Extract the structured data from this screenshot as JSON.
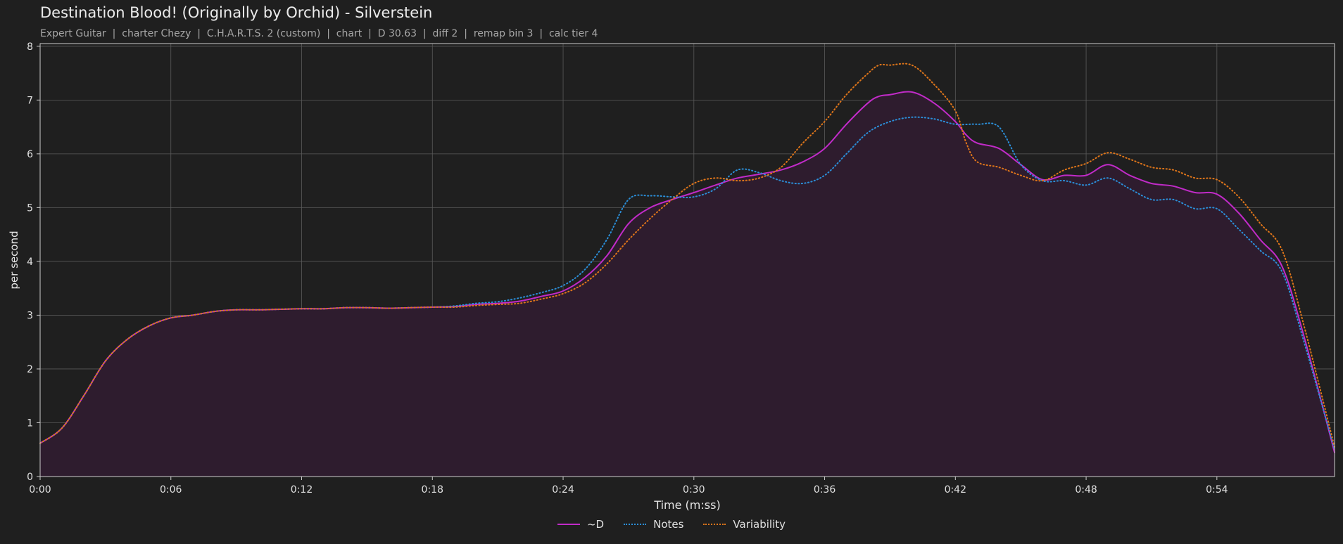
{
  "chart_data": {
    "type": "line",
    "title": "Destination Blood! (Originally by Orchid) - Silverstein",
    "subtitle": "Expert Guitar  |  charter Chezy  |  C.H.A.R.T.S. 2 (custom)  |  chart  |  D 30.63  |  diff 2  |  remap bin 3  |  calc tier 4",
    "xlabel": "Time (m:ss)",
    "ylabel": "per second",
    "xlim": [
      0,
      59.4
    ],
    "ylim": [
      0,
      8.05
    ],
    "xticks": [
      {
        "value": 0,
        "label": "0:00"
      },
      {
        "value": 6,
        "label": "0:06"
      },
      {
        "value": 12,
        "label": "0:12"
      },
      {
        "value": 18,
        "label": "0:18"
      },
      {
        "value": 24,
        "label": "0:24"
      },
      {
        "value": 30,
        "label": "0:30"
      },
      {
        "value": 36,
        "label": "0:36"
      },
      {
        "value": 42,
        "label": "0:42"
      },
      {
        "value": 48,
        "label": "0:48"
      },
      {
        "value": 54,
        "label": "0:54"
      }
    ],
    "yticks": [
      {
        "value": 0,
        "label": "0"
      },
      {
        "value": 1,
        "label": "1"
      },
      {
        "value": 2,
        "label": "2"
      },
      {
        "value": 3,
        "label": "3"
      },
      {
        "value": 4,
        "label": "4"
      },
      {
        "value": 5,
        "label": "5"
      },
      {
        "value": 6,
        "label": "6"
      },
      {
        "value": 7,
        "label": "7"
      },
      {
        "value": 8,
        "label": "8"
      }
    ],
    "grid": true,
    "legend_position": "bottom-center",
    "colors": {
      "background": "#1f1f1f",
      "grid": "#5a5a5a",
      "axis": "#cccccc",
      "fill": "#2e1c2e"
    },
    "series": [
      {
        "name": "~D",
        "color": "#c12bc8",
        "style": "solid",
        "filled": true,
        "points": [
          [
            0,
            0.62
          ],
          [
            1,
            0.9
          ],
          [
            2,
            1.5
          ],
          [
            3,
            2.15
          ],
          [
            4,
            2.55
          ],
          [
            5,
            2.8
          ],
          [
            6,
            2.95
          ],
          [
            7,
            3.0
          ],
          [
            8,
            3.07
          ],
          [
            9,
            3.1
          ],
          [
            10,
            3.1
          ],
          [
            11,
            3.11
          ],
          [
            12,
            3.12
          ],
          [
            13,
            3.12
          ],
          [
            14,
            3.14
          ],
          [
            15,
            3.14
          ],
          [
            16,
            3.13
          ],
          [
            17,
            3.14
          ],
          [
            18,
            3.15
          ],
          [
            19,
            3.16
          ],
          [
            20,
            3.2
          ],
          [
            21,
            3.22
          ],
          [
            22,
            3.26
          ],
          [
            23,
            3.35
          ],
          [
            24,
            3.45
          ],
          [
            25,
            3.7
          ],
          [
            26,
            4.1
          ],
          [
            27,
            4.7
          ],
          [
            28,
            5.0
          ],
          [
            29,
            5.15
          ],
          [
            30,
            5.28
          ],
          [
            31,
            5.42
          ],
          [
            32,
            5.55
          ],
          [
            33,
            5.62
          ],
          [
            34,
            5.7
          ],
          [
            35,
            5.85
          ],
          [
            36,
            6.1
          ],
          [
            37,
            6.55
          ],
          [
            38,
            6.95
          ],
          [
            38.5,
            7.07
          ],
          [
            39,
            7.1
          ],
          [
            40,
            7.15
          ],
          [
            41,
            6.95
          ],
          [
            42,
            6.6
          ],
          [
            42.5,
            6.35
          ],
          [
            43,
            6.2
          ],
          [
            44,
            6.1
          ],
          [
            45,
            5.8
          ],
          [
            46,
            5.52
          ],
          [
            47,
            5.6
          ],
          [
            48,
            5.6
          ],
          [
            49,
            5.8
          ],
          [
            50,
            5.6
          ],
          [
            51,
            5.45
          ],
          [
            52,
            5.4
          ],
          [
            53,
            5.28
          ],
          [
            54,
            5.25
          ],
          [
            55,
            4.9
          ],
          [
            56,
            4.4
          ],
          [
            57,
            3.9
          ],
          [
            58,
            2.6
          ],
          [
            59.4,
            0.45
          ]
        ]
      },
      {
        "name": "Notes",
        "color": "#2b8fd9",
        "style": "dotted",
        "filled": false,
        "points": [
          [
            0,
            0.62
          ],
          [
            1,
            0.9
          ],
          [
            2,
            1.5
          ],
          [
            3,
            2.15
          ],
          [
            4,
            2.55
          ],
          [
            5,
            2.8
          ],
          [
            6,
            2.95
          ],
          [
            7,
            3.0
          ],
          [
            8,
            3.07
          ],
          [
            9,
            3.1
          ],
          [
            10,
            3.1
          ],
          [
            11,
            3.11
          ],
          [
            12,
            3.12
          ],
          [
            13,
            3.12
          ],
          [
            14,
            3.14
          ],
          [
            15,
            3.14
          ],
          [
            16,
            3.13
          ],
          [
            17,
            3.14
          ],
          [
            18,
            3.15
          ],
          [
            19,
            3.17
          ],
          [
            20,
            3.22
          ],
          [
            21,
            3.25
          ],
          [
            22,
            3.32
          ],
          [
            23,
            3.42
          ],
          [
            24,
            3.55
          ],
          [
            25,
            3.85
          ],
          [
            26,
            4.4
          ],
          [
            27,
            5.15
          ],
          [
            28,
            5.22
          ],
          [
            29,
            5.2
          ],
          [
            30,
            5.2
          ],
          [
            31,
            5.35
          ],
          [
            32,
            5.7
          ],
          [
            33,
            5.65
          ],
          [
            34,
            5.5
          ],
          [
            35,
            5.45
          ],
          [
            36,
            5.6
          ],
          [
            37,
            6.0
          ],
          [
            38,
            6.4
          ],
          [
            39,
            6.6
          ],
          [
            40,
            6.68
          ],
          [
            41,
            6.65
          ],
          [
            42,
            6.55
          ],
          [
            43,
            6.55
          ],
          [
            44,
            6.5
          ],
          [
            45,
            5.8
          ],
          [
            46,
            5.5
          ],
          [
            47,
            5.5
          ],
          [
            48,
            5.42
          ],
          [
            49,
            5.55
          ],
          [
            50,
            5.35
          ],
          [
            51,
            5.15
          ],
          [
            52,
            5.15
          ],
          [
            53,
            4.98
          ],
          [
            54,
            4.98
          ],
          [
            55,
            4.6
          ],
          [
            56,
            4.2
          ],
          [
            57,
            3.8
          ],
          [
            58,
            2.5
          ],
          [
            59.4,
            0.5
          ]
        ]
      },
      {
        "name": "Variability",
        "color": "#e0761a",
        "style": "dotted",
        "filled": false,
        "points": [
          [
            0,
            0.62
          ],
          [
            1,
            0.9
          ],
          [
            2,
            1.5
          ],
          [
            3,
            2.15
          ],
          [
            4,
            2.55
          ],
          [
            5,
            2.8
          ],
          [
            6,
            2.95
          ],
          [
            7,
            3.0
          ],
          [
            8,
            3.07
          ],
          [
            9,
            3.1
          ],
          [
            10,
            3.1
          ],
          [
            11,
            3.11
          ],
          [
            12,
            3.12
          ],
          [
            13,
            3.12
          ],
          [
            14,
            3.14
          ],
          [
            15,
            3.14
          ],
          [
            16,
            3.13
          ],
          [
            17,
            3.14
          ],
          [
            18,
            3.15
          ],
          [
            19,
            3.15
          ],
          [
            20,
            3.18
          ],
          [
            21,
            3.2
          ],
          [
            22,
            3.22
          ],
          [
            23,
            3.3
          ],
          [
            24,
            3.4
          ],
          [
            25,
            3.6
          ],
          [
            26,
            3.95
          ],
          [
            27,
            4.4
          ],
          [
            28,
            4.8
          ],
          [
            29,
            5.15
          ],
          [
            30,
            5.45
          ],
          [
            31,
            5.55
          ],
          [
            32,
            5.5
          ],
          [
            33,
            5.55
          ],
          [
            34,
            5.75
          ],
          [
            35,
            6.2
          ],
          [
            36,
            6.6
          ],
          [
            37,
            7.1
          ],
          [
            38,
            7.5
          ],
          [
            38.5,
            7.65
          ],
          [
            39,
            7.65
          ],
          [
            40,
            7.65
          ],
          [
            41,
            7.3
          ],
          [
            42,
            6.8
          ],
          [
            42.5,
            6.2
          ],
          [
            43,
            5.85
          ],
          [
            44,
            5.75
          ],
          [
            45,
            5.6
          ],
          [
            46,
            5.5
          ],
          [
            47,
            5.7
          ],
          [
            48,
            5.82
          ],
          [
            49,
            6.02
          ],
          [
            50,
            5.9
          ],
          [
            51,
            5.75
          ],
          [
            52,
            5.7
          ],
          [
            53,
            5.55
          ],
          [
            54,
            5.52
          ],
          [
            55,
            5.2
          ],
          [
            56,
            4.7
          ],
          [
            57,
            4.2
          ],
          [
            58,
            2.8
          ],
          [
            59.4,
            0.55
          ]
        ]
      }
    ]
  }
}
